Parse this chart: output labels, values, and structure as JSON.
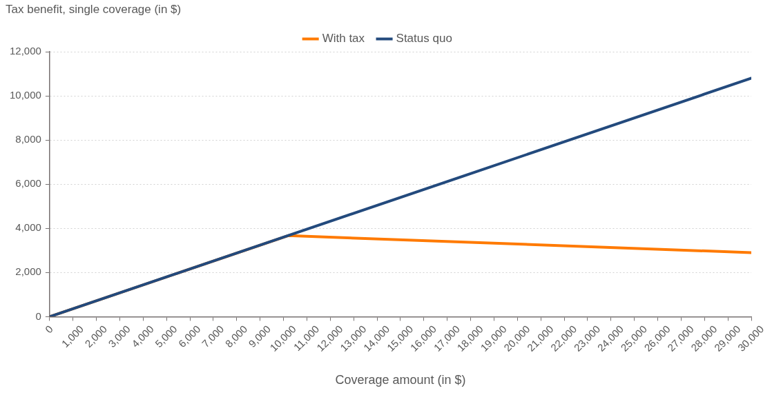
{
  "chart_data": {
    "type": "line",
    "ylabel": "Tax benefit, single coverage (in $)",
    "xlabel": "Coverage amount (in $)",
    "xlim": [
      0,
      30000
    ],
    "xticks": [
      {
        "value": 0,
        "label": "0"
      },
      {
        "value": 1000,
        "label": "1,000"
      },
      {
        "value": 2000,
        "label": "2,000"
      },
      {
        "value": 3000,
        "label": "3,000"
      },
      {
        "value": 4000,
        "label": "4,000"
      },
      {
        "value": 5000,
        "label": "5,000"
      },
      {
        "value": 6000,
        "label": "6,000"
      },
      {
        "value": 7000,
        "label": "7,000"
      },
      {
        "value": 8000,
        "label": "8,000"
      },
      {
        "value": 9000,
        "label": "9,000"
      },
      {
        "value": 10000,
        "label": "10,000"
      },
      {
        "value": 11000,
        "label": "11,000"
      },
      {
        "value": 12000,
        "label": "12,000"
      },
      {
        "value": 13000,
        "label": "13,000"
      },
      {
        "value": 14000,
        "label": "14,000"
      },
      {
        "value": 15000,
        "label": "15,000"
      },
      {
        "value": 16000,
        "label": "16,000"
      },
      {
        "value": 17000,
        "label": "17,000"
      },
      {
        "value": 18000,
        "label": "18,000"
      },
      {
        "value": 19000,
        "label": "19,000"
      },
      {
        "value": 20000,
        "label": "20,000"
      },
      {
        "value": 21000,
        "label": "21,000"
      },
      {
        "value": 22000,
        "label": "22,000"
      },
      {
        "value": 23000,
        "label": "23,000"
      },
      {
        "value": 24000,
        "label": "24,000"
      },
      {
        "value": 25000,
        "label": "25,000"
      },
      {
        "value": 26000,
        "label": "26,000"
      },
      {
        "value": 27000,
        "label": "27,000"
      },
      {
        "value": 28000,
        "label": "28,000"
      },
      {
        "value": 29000,
        "label": "29,000"
      },
      {
        "value": 30000,
        "label": "30,000"
      }
    ],
    "ylim": [
      0,
      12000
    ],
    "yticks": [
      {
        "value": 0,
        "label": "0"
      },
      {
        "value": 2000,
        "label": "2,000"
      },
      {
        "value": 4000,
        "label": "4,000"
      },
      {
        "value": 6000,
        "label": "6,000"
      },
      {
        "value": 8000,
        "label": "8,000"
      },
      {
        "value": 10000,
        "label": "10,000"
      },
      {
        "value": 12000,
        "label": "12,000"
      }
    ],
    "series": [
      {
        "name": "With tax",
        "color": "#ff7a00",
        "x": [
          0,
          10200,
          30000
        ],
        "values": [
          0,
          3670,
          2900
        ]
      },
      {
        "name": "Status quo",
        "color": "#234a7d",
        "x": [
          0,
          30000
        ],
        "values": [
          0,
          10800
        ]
      }
    ],
    "grid": "y",
    "legend": "top",
    "marker": "none",
    "line_style": "solid"
  }
}
